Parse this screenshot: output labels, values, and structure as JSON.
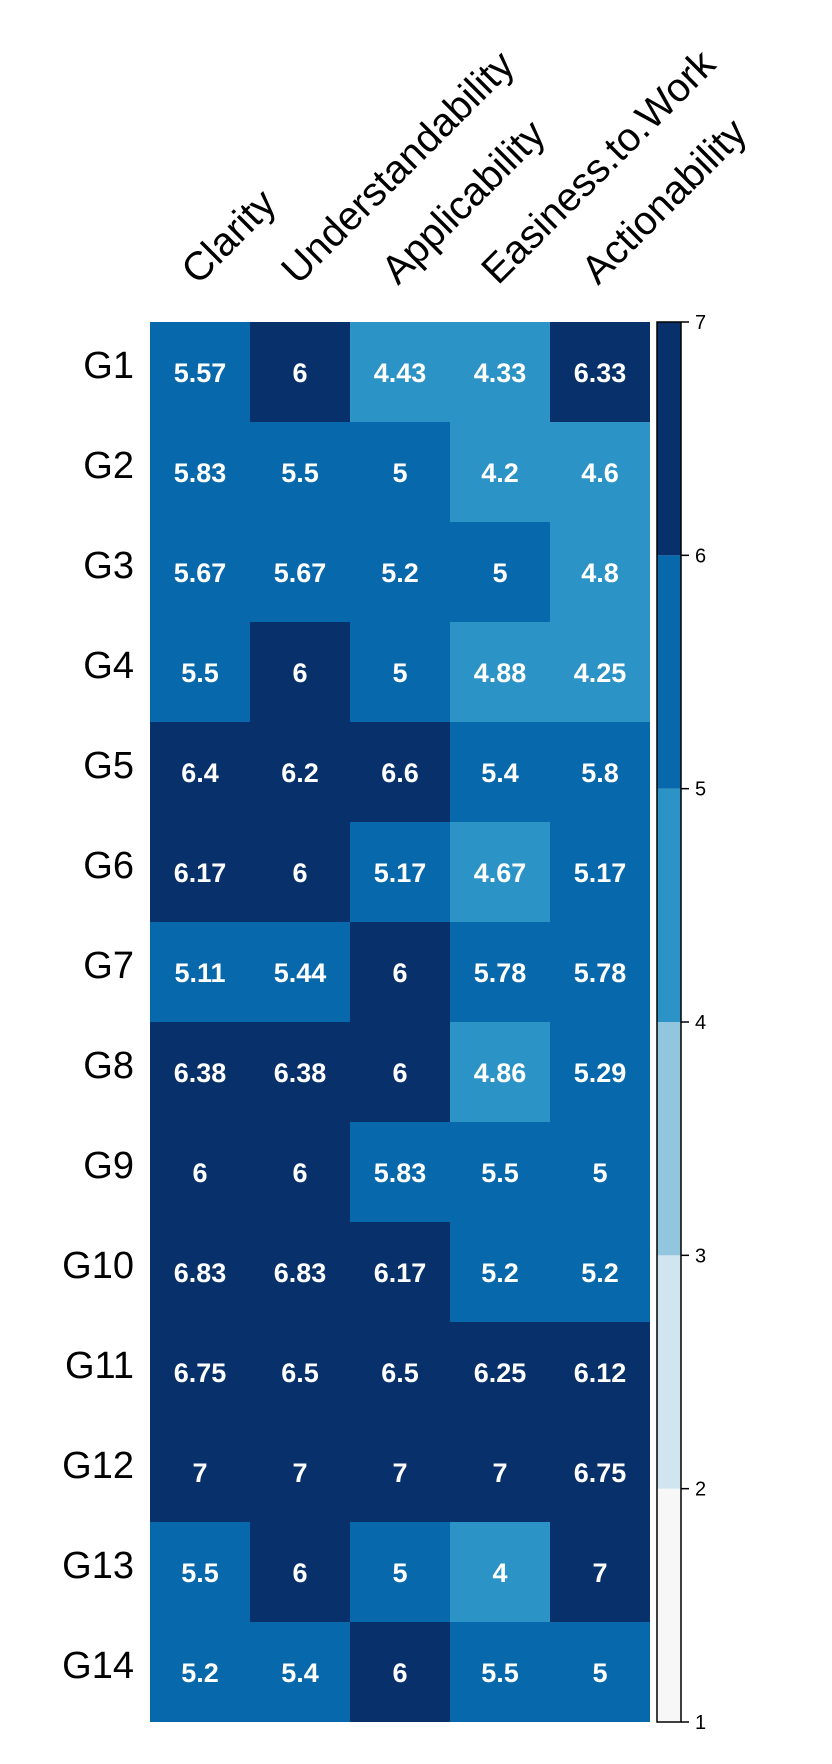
{
  "chart_data": {
    "type": "heatmap",
    "title": "",
    "xlabel": "",
    "ylabel": "",
    "columns": [
      "Clarity",
      "Understandability",
      "Applicability",
      "Easiness.to.Work",
      "Actionability"
    ],
    "rows": [
      "G1",
      "G2",
      "G3",
      "G4",
      "G5",
      "G6",
      "G7",
      "G8",
      "G9",
      "G10",
      "G11",
      "G12",
      "G13",
      "G14"
    ],
    "values": [
      [
        5.57,
        6,
        4.43,
        4.33,
        6.33
      ],
      [
        5.83,
        5.5,
        5,
        4.2,
        4.6
      ],
      [
        5.67,
        5.67,
        5.2,
        5,
        4.8
      ],
      [
        5.5,
        6,
        5,
        4.88,
        4.25
      ],
      [
        6.4,
        6.2,
        6.6,
        5.4,
        5.8
      ],
      [
        6.17,
        6,
        5.17,
        4.67,
        5.17
      ],
      [
        5.11,
        5.44,
        6,
        5.78,
        5.78
      ],
      [
        6.38,
        6.38,
        6,
        4.86,
        5.29
      ],
      [
        6,
        6,
        5.83,
        5.5,
        5
      ],
      [
        6.83,
        6.83,
        6.17,
        5.2,
        5.2
      ],
      [
        6.75,
        6.5,
        6.5,
        6.25,
        6.12
      ],
      [
        7,
        7,
        7,
        7,
        6.75
      ],
      [
        5.5,
        6,
        5,
        4,
        7
      ],
      [
        5.2,
        5.4,
        6,
        5.5,
        5
      ]
    ],
    "value_labels": [
      [
        "5.57",
        "6",
        "4.43",
        "4.33",
        "6.33"
      ],
      [
        "5.83",
        "5.5",
        "5",
        "4.2",
        "4.6"
      ],
      [
        "5.67",
        "5.67",
        "5.2",
        "5",
        "4.8"
      ],
      [
        "5.5",
        "6",
        "5",
        "4.88",
        "4.25"
      ],
      [
        "6.4",
        "6.2",
        "6.6",
        "5.4",
        "5.8"
      ],
      [
        "6.17",
        "6",
        "5.17",
        "4.67",
        "5.17"
      ],
      [
        "5.11",
        "5.44",
        "6",
        "5.78",
        "5.78"
      ],
      [
        "6.38",
        "6.38",
        "6",
        "4.86",
        "5.29"
      ],
      [
        "6",
        "6",
        "5.83",
        "5.5",
        "5"
      ],
      [
        "6.83",
        "6.83",
        "6.17",
        "5.2",
        "5.2"
      ],
      [
        "6.75",
        "6.5",
        "6.5",
        "6.25",
        "6.12"
      ],
      [
        "7",
        "7",
        "7",
        "7",
        "6.75"
      ],
      [
        "5.5",
        "6",
        "5",
        "4",
        "7"
      ],
      [
        "5.2",
        "5.4",
        "6",
        "5.5",
        "5"
      ]
    ],
    "color_scale": {
      "breaks": [
        1,
        2,
        3,
        4,
        5,
        6,
        7
      ],
      "colors": [
        "#f7f7f7",
        "#d1e5f0",
        "#92c5de",
        "#2b93c6",
        "#0868ac",
        "#08306b"
      ],
      "tick_labels": [
        "1",
        "2",
        "3",
        "4",
        "5",
        "6",
        "7"
      ]
    },
    "grid": false,
    "legend_placement": "right"
  }
}
